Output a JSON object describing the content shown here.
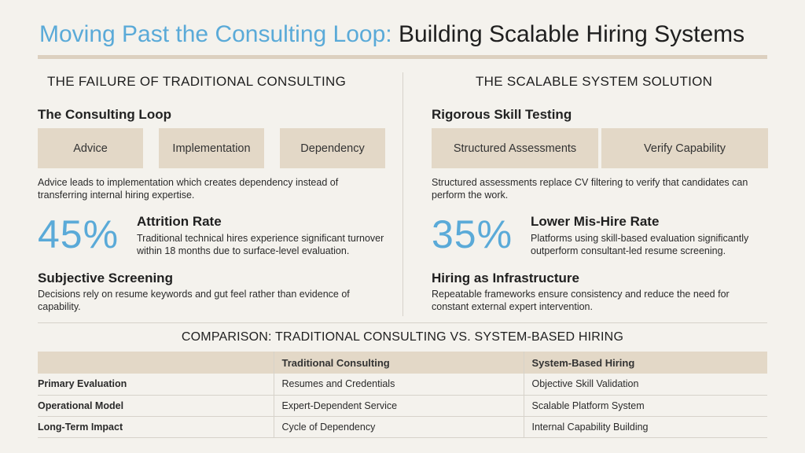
{
  "title": {
    "highlight": "Moving Past the Consulting Loop:",
    "rest": " Building Scalable Hiring Systems"
  },
  "left": {
    "heading": "THE FAILURE OF TRADITIONAL CONSULTING",
    "subhead": "The Consulting Loop",
    "boxes": [
      "Advice",
      "Implementation",
      "Dependency"
    ],
    "desc": "Advice leads to implementation which creates dependency instead of transferring internal hiring expertise.",
    "stat": {
      "value": "45%",
      "title": "Attrition Rate",
      "desc": "Traditional technical hires experience significant turnover within 18 months due to surface-level evaluation."
    },
    "sub2": {
      "title": "Subjective Screening",
      "desc": "Decisions rely on resume keywords and gut feel rather than evidence of capability."
    }
  },
  "right": {
    "heading": "THE SCALABLE SYSTEM SOLUTION",
    "subhead": "Rigorous Skill Testing",
    "boxes": [
      "Structured Assessments",
      "Verify Capability"
    ],
    "desc": "Structured assessments replace CV filtering to verify that candidates can perform the work.",
    "stat": {
      "value": "35%",
      "title": "Lower Mis-Hire Rate",
      "desc": "Platforms using skill-based evaluation significantly outperform consultant-led resume screening."
    },
    "sub2": {
      "title": "Hiring as Infrastructure",
      "desc": "Repeatable frameworks ensure consistency and reduce the need for constant external expert intervention."
    }
  },
  "comparison": {
    "title": "COMPARISON: TRADITIONAL CONSULTING VS. SYSTEM-BASED HIRING",
    "headers": [
      "",
      "Traditional Consulting",
      "System-Based Hiring"
    ],
    "rows": [
      [
        "Primary Evaluation",
        "Resumes and Credentials",
        "Objective Skill Validation"
      ],
      [
        "Operational Model",
        "Expert-Dependent Service",
        "Scalable Platform System"
      ],
      [
        "Long-Term Impact",
        "Cycle of Dependency",
        "Internal Capability Building"
      ]
    ]
  }
}
